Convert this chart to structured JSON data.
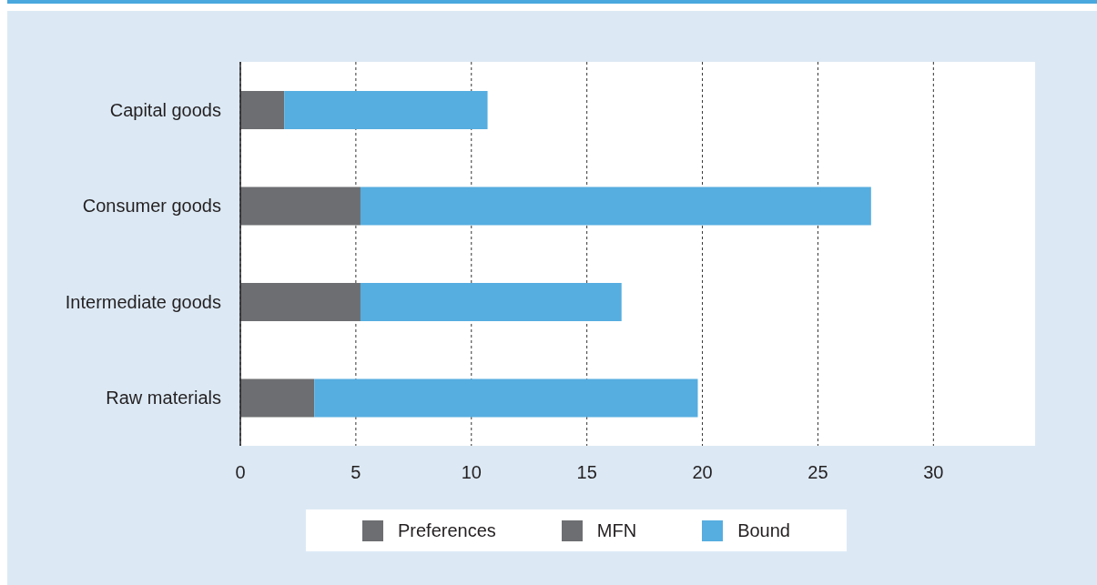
{
  "chart_data": {
    "type": "bar",
    "orientation": "horizontal",
    "stacked": true,
    "categories": [
      "Capital goods",
      "Consumer goods",
      "Intermediate goods",
      "Raw materials"
    ],
    "series": [
      {
        "name": "Preferences",
        "color": "#6d6e71",
        "values": [
          null,
          null,
          null,
          null
        ]
      },
      {
        "name": "MFN",
        "color": "#6d6e71",
        "values": [
          1.9,
          5.2,
          5.2,
          3.2
        ]
      },
      {
        "name": "Bound",
        "color": "#56ade0",
        "values": [
          8.8,
          22.1,
          11.3,
          16.6
        ]
      }
    ],
    "xlim": [
      0,
      34.4
    ],
    "xticks": [
      0,
      5,
      10,
      15,
      20,
      25,
      30
    ],
    "grid": "x",
    "legend": "bottom"
  }
}
